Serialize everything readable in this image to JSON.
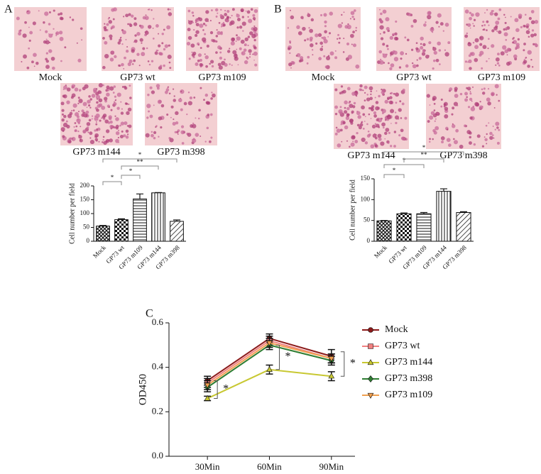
{
  "panels": [
    "A",
    "B",
    "C"
  ],
  "images": [
    [
      "Mock",
      "GP73 wt",
      "GP73 m109",
      "GP73 m144",
      "GP73 m398"
    ],
    [
      "Mock",
      "GP73 wt",
      "GP73 m109",
      "GP73 m144",
      "GP73 m398"
    ]
  ],
  "chart_data": [
    {
      "type": "bar",
      "y_label": "Cell number per field",
      "categories": [
        "Mock",
        "GP73 wt",
        "GP73 m109",
        "GP73 m144",
        "GP73 m398"
      ],
      "values": [
        55,
        78,
        153,
        175,
        72
      ],
      "errors": [
        2,
        3,
        18,
        1,
        5
      ],
      "color": "#111111",
      "ylim": [
        0,
        200
      ],
      "yticks": [
        0,
        50,
        100,
        150,
        200
      ],
      "significance": [
        {
          "from": 0,
          "to": 1,
          "label": "*"
        },
        {
          "from": 1,
          "to": 2,
          "label": "*"
        },
        {
          "from": 1,
          "to": 3,
          "label": "**"
        },
        {
          "from": 0,
          "to": 4,
          "label": "*"
        }
      ]
    },
    {
      "type": "bar",
      "y_label": "Cell number per field",
      "categories": [
        "Mock",
        "GP73 wt",
        "GP73 m109",
        "GP73 m144",
        "GP73 m398"
      ],
      "values": [
        49,
        66,
        66,
        120,
        69
      ],
      "errors": [
        1,
        2,
        3,
        6,
        2
      ],
      "color": "#111111",
      "ylim": [
        0,
        150
      ],
      "yticks": [
        0,
        50,
        100,
        150
      ],
      "significance": [
        {
          "from": 0,
          "to": 1,
          "label": "*"
        },
        {
          "from": 0,
          "to": 2,
          "label": "*"
        },
        {
          "from": 1,
          "to": 3,
          "label": "**"
        },
        {
          "from": 0,
          "to": 4,
          "label": "*"
        }
      ]
    },
    {
      "type": "line",
      "y_label": "OD450",
      "categories": [
        "30Min",
        "60Min",
        "90Min"
      ],
      "ylim": [
        0,
        0.6
      ],
      "yticks": [
        {
          "value": 0,
          "label": "0.0"
        },
        0.2,
        0.4,
        0.6
      ],
      "series": [
        {
          "name": "Mock",
          "color": "#8b1a1a",
          "values": [
            0.34,
            0.53,
            0.45
          ],
          "errors": [
            0.02,
            0.02,
            0.03
          ]
        },
        {
          "name": "GP73 wt",
          "color": "#f08080",
          "values": [
            0.33,
            0.52,
            0.44
          ],
          "errors": [
            0.02,
            0.02,
            0.02
          ]
        },
        {
          "name": "GP73 m144",
          "color": "#c8c832",
          "values": [
            0.26,
            0.39,
            0.36
          ],
          "errors": [
            0.01,
            0.02,
            0.02
          ]
        },
        {
          "name": "GP73 m398",
          "color": "#2e7d32",
          "values": [
            0.31,
            0.5,
            0.43
          ],
          "errors": [
            0.02,
            0.02,
            0.02
          ]
        },
        {
          "name": "GP73 m109",
          "color": "#f0a050",
          "values": [
            0.32,
            0.51,
            0.44
          ],
          "errors": [
            0.02,
            0.02,
            0.02
          ]
        }
      ],
      "annotations": [
        "*",
        "*",
        "*"
      ]
    }
  ]
}
